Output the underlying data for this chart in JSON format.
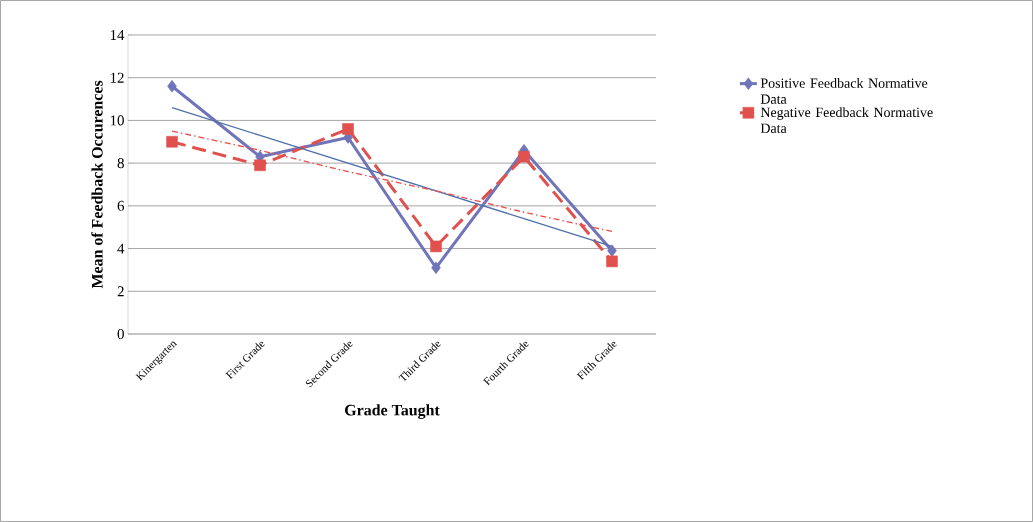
{
  "chart_data": {
    "type": "line",
    "xlabel": "Grade Taught",
    "ylabel": "Mean of Feedback Occurences",
    "categories": [
      "Kinergarten",
      "First Grade",
      "Second Grade",
      "Third Grade",
      "Fourth Grade",
      "Fifth Grade"
    ],
    "series": [
      {
        "name": "Positive Feedback Normative Data",
        "color": "#7074b8",
        "marker": "diamond",
        "line_style": "solid",
        "values": [
          11.6,
          8.3,
          9.2,
          3.1,
          8.6,
          3.9
        ]
      },
      {
        "name": "Negative Feedback Normative Data",
        "color": "#e0504c",
        "marker": "square",
        "line_style": "dashed",
        "values": [
          9.0,
          7.9,
          9.6,
          4.1,
          8.3,
          3.4
        ]
      },
      {
        "color": "#4f6fae",
        "marker": "none",
        "line_style": "solid",
        "values": [
          10.6,
          9.3,
          8.0,
          6.7,
          5.4,
          4.1
        ]
      },
      {
        "color": "#ee4a48",
        "marker": "none",
        "line_style": "dotted",
        "values": [
          9.5,
          8.6,
          7.6,
          6.7,
          5.7,
          4.8
        ]
      }
    ],
    "ylim": [
      0,
      14
    ],
    "yticks": [
      0,
      2,
      4,
      6,
      8,
      10,
      12,
      14
    ],
    "grid": "y",
    "legend": "right"
  }
}
